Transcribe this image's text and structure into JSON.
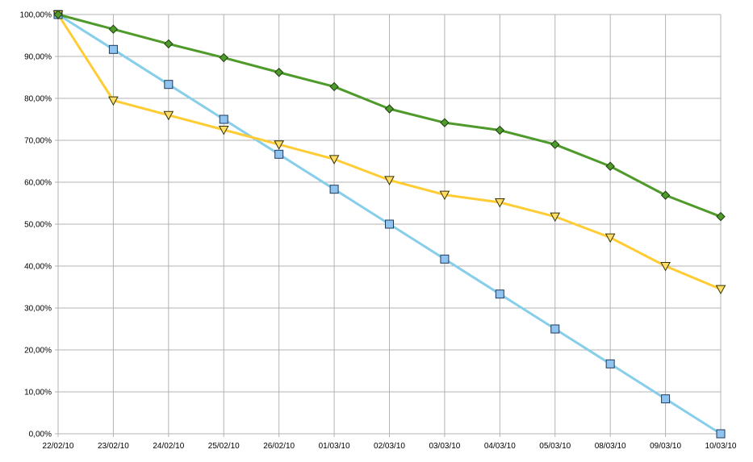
{
  "chart_data": {
    "type": "line",
    "title": "",
    "xlabel": "",
    "ylabel": "",
    "categories": [
      "22/02/10",
      "23/02/10",
      "24/02/10",
      "25/02/10",
      "26/02/10",
      "01/03/10",
      "02/03/10",
      "03/03/10",
      "04/03/10",
      "05/03/10",
      "08/03/10",
      "09/03/10",
      "10/03/10"
    ],
    "ylim": [
      0,
      100
    ],
    "y_ticks": [
      0,
      10,
      20,
      30,
      40,
      50,
      60,
      70,
      80,
      90,
      100
    ],
    "y_tick_labels": [
      "0,00%",
      "10,00%",
      "20,00%",
      "30,00%",
      "40,00%",
      "50,00%",
      "60,00%",
      "70,00%",
      "80,00%",
      "90,00%",
      "100,00%"
    ],
    "grid": true,
    "legend": "none",
    "series": [
      {
        "color": "#87CEEB",
        "marker": "square",
        "marker_fill": "#8FC4F0",
        "values": [
          100,
          91.67,
          83.33,
          75.0,
          66.67,
          58.33,
          50.0,
          41.67,
          33.33,
          25.0,
          16.67,
          8.33,
          0.0
        ]
      },
      {
        "color": "#FFCC33",
        "marker": "triangle-down",
        "marker_fill": "#FFDD66",
        "values": [
          100,
          79.5,
          76.0,
          72.5,
          69.0,
          65.5,
          60.5,
          57.0,
          55.2,
          51.8,
          46.8,
          40.0,
          34.5
        ]
      },
      {
        "color": "#4E9A2A",
        "marker": "diamond",
        "marker_fill": "#4E9A2A",
        "values": [
          100,
          96.5,
          93.0,
          89.7,
          86.2,
          82.8,
          77.5,
          74.2,
          72.4,
          69.0,
          63.8,
          56.9,
          51.8
        ]
      }
    ]
  }
}
